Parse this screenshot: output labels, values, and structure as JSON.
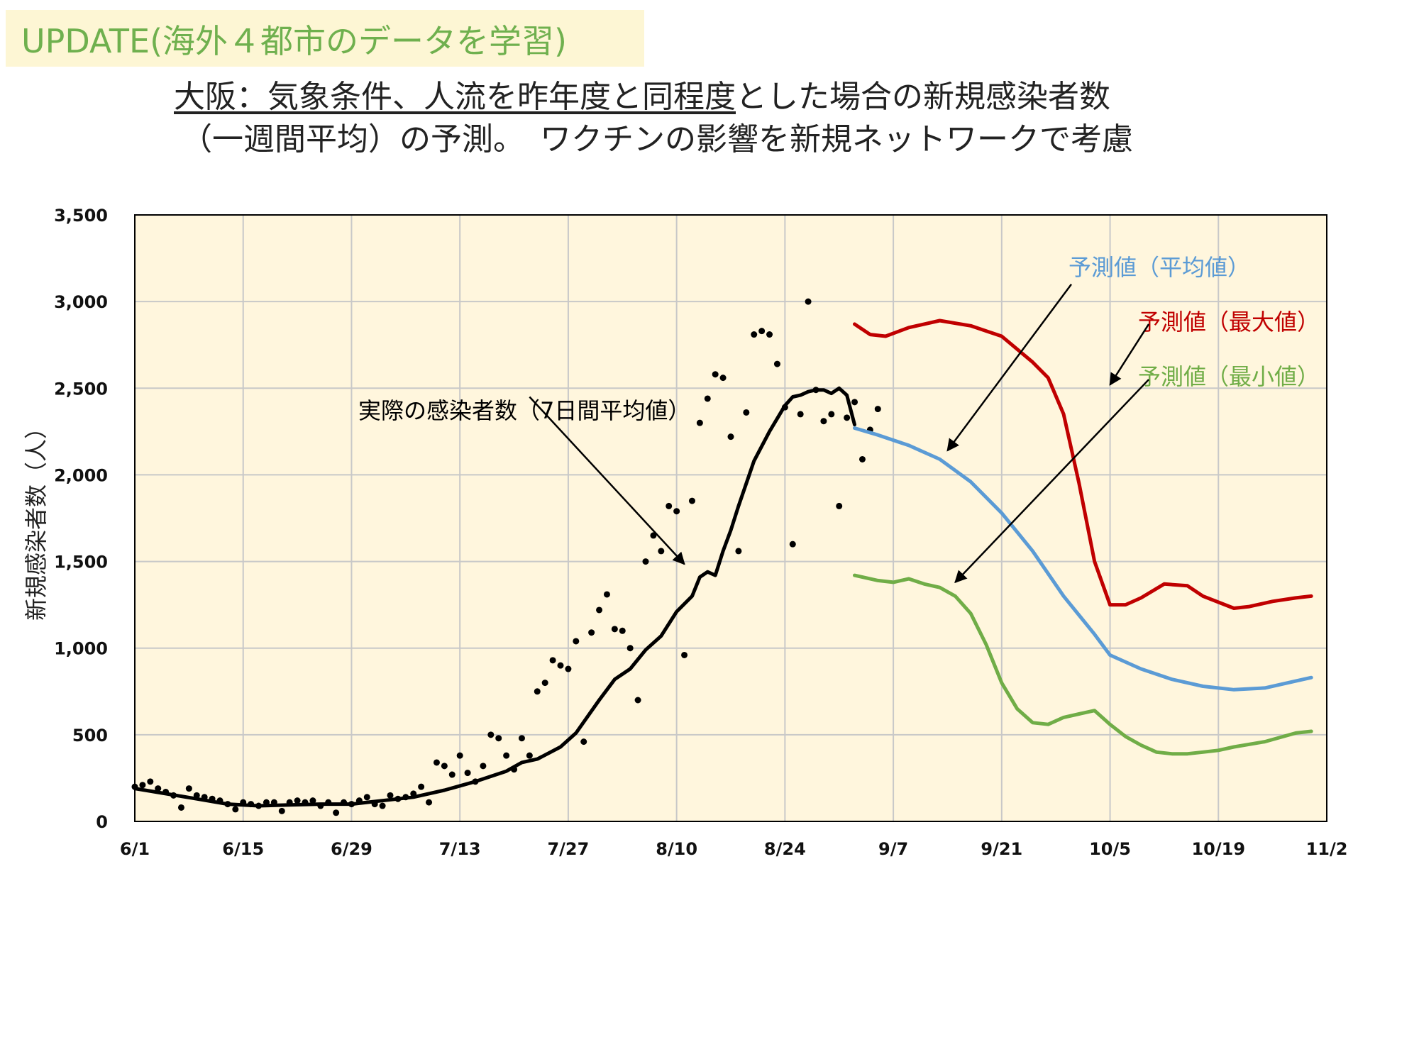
{
  "header": {
    "badge": "UPDATE(海外４都市のデータを学習)",
    "title_line1_underlined": "大阪：気象条件、人流を昨年度と同程度",
    "title_line1_rest": "とした場合の新規感染者数",
    "title_line2": "（一週間平均）の予測。　ワクチンの影響を新規ネットワークで考慮"
  },
  "colors": {
    "plot_bg": "#fff6dd",
    "grid": "#c8c8c8",
    "actual": "#000000",
    "pred_avg": "#5b9bd5",
    "pred_max": "#c00000",
    "pred_min": "#70ad47",
    "badge_text": "#6fb04e"
  },
  "chart_data": {
    "type": "line",
    "title": "",
    "ylabel": "新規感染者数（人）",
    "xlabel": "",
    "ylim": [
      0,
      3500
    ],
    "y_ticks": [
      0,
      500,
      1000,
      1500,
      2000,
      2500,
      3000,
      3500
    ],
    "y_tick_labels": [
      "0",
      "500",
      "1,000",
      "1,500",
      "2,000",
      "2,500",
      "3,000",
      "3,500"
    ],
    "x_ticks": [
      0,
      14,
      28,
      42,
      56,
      70,
      84,
      98,
      112,
      126,
      140,
      154
    ],
    "x_tick_labels": [
      "6/1",
      "6/15",
      "6/29",
      "7/13",
      "7/27",
      "8/10",
      "8/24",
      "9/7",
      "9/21",
      "10/5",
      "10/19",
      "11/2"
    ],
    "x_unit": "days from 6/1",
    "grid": true,
    "annotations": [
      {
        "text": "実際の感染者数（7日間平均値）",
        "color": "#000000",
        "from": [
          51,
          2450
        ],
        "to": [
          71,
          1485
        ]
      },
      {
        "text": "予測値（平均値）",
        "color": "#5b9bd5",
        "from": [
          121,
          3100
        ],
        "to": [
          105,
          2140
        ]
      },
      {
        "text": "予測値（最大値）",
        "color": "#c00000",
        "from": [
          131,
          2870
        ],
        "to": [
          126,
          2520
        ]
      },
      {
        "text": "予測値（最小値）",
        "color": "#70ad47",
        "from": [
          131,
          2550
        ],
        "to": [
          106,
          1380
        ]
      }
    ],
    "series": [
      {
        "name": "実際の感染者数（7日間平均値）",
        "type": "line",
        "key": "actual",
        "x": [
          0,
          4,
          8,
          12,
          16,
          20,
          24,
          28,
          32,
          36,
          40,
          44,
          48,
          50,
          52,
          55,
          57,
          60,
          62,
          64,
          66,
          68,
          70,
          72,
          73,
          74,
          75,
          76,
          77,
          78,
          80,
          82,
          84,
          85,
          86,
          87,
          88,
          89,
          90,
          91,
          92,
          93
        ],
        "y": [
          190,
          160,
          130,
          100,
          90,
          95,
          100,
          100,
          120,
          140,
          180,
          230,
          290,
          340,
          360,
          430,
          510,
          700,
          820,
          880,
          990,
          1070,
          1210,
          1300,
          1410,
          1440,
          1420,
          1560,
          1680,
          1820,
          2080,
          2250,
          2400,
          2450,
          2460,
          2480,
          2490,
          2490,
          2470,
          2500,
          2460,
          2290
        ]
      },
      {
        "name": "実際の感染者数（日次）",
        "type": "scatter",
        "key": "daily",
        "x": [
          0,
          1,
          2,
          3,
          4,
          5,
          6,
          7,
          8,
          9,
          10,
          11,
          12,
          13,
          14,
          15,
          16,
          17,
          18,
          19,
          20,
          21,
          22,
          23,
          24,
          25,
          26,
          27,
          28,
          29,
          30,
          31,
          32,
          33,
          34,
          35,
          36,
          37,
          38,
          39,
          40,
          41,
          42,
          43,
          44,
          45,
          46,
          47,
          48,
          49,
          50,
          51,
          52,
          53,
          54,
          55,
          56,
          57,
          58,
          59,
          60,
          61,
          62,
          63,
          64,
          65,
          66,
          67,
          68,
          69,
          70,
          71,
          72,
          73,
          74,
          75,
          76,
          77,
          78,
          79,
          80,
          81,
          82,
          83,
          84,
          85,
          86,
          87,
          88,
          89,
          90,
          91,
          92,
          93,
          94,
          95,
          96
        ],
        "y": [
          200,
          210,
          230,
          190,
          170,
          150,
          80,
          190,
          150,
          140,
          130,
          120,
          100,
          70,
          110,
          100,
          90,
          110,
          110,
          60,
          110,
          120,
          110,
          120,
          90,
          110,
          50,
          110,
          100,
          120,
          140,
          100,
          90,
          150,
          130,
          140,
          160,
          200,
          110,
          340,
          320,
          270,
          380,
          280,
          230,
          320,
          500,
          480,
          380,
          300,
          480,
          380,
          750,
          800,
          930,
          900,
          880,
          1040,
          460,
          1090,
          1220,
          1310,
          1110,
          1100,
          1000,
          700,
          1500,
          1650,
          1560,
          1820,
          1790,
          960,
          1850,
          2300,
          2440,
          2580,
          2560,
          2220,
          1560,
          2360,
          2810,
          2830,
          2810,
          2640,
          2390,
          1600,
          2350,
          3000,
          2490,
          2310,
          2350,
          1820,
          2330,
          2420,
          2090,
          2260,
          2380
        ]
      },
      {
        "name": "予測値（平均値）",
        "type": "line",
        "key": "pred_avg",
        "x": [
          93,
          96,
          100,
          104,
          108,
          112,
          116,
          120,
          124,
          126,
          130,
          134,
          138,
          142,
          146,
          150,
          152
        ],
        "y": [
          2270,
          2230,
          2170,
          2090,
          1960,
          1780,
          1560,
          1300,
          1080,
          960,
          880,
          820,
          780,
          760,
          770,
          810,
          830
        ]
      },
      {
        "name": "予測値（最大値）",
        "type": "line",
        "key": "pred_max",
        "x": [
          93,
          95,
          97,
          100,
          102,
          104,
          108,
          112,
          116,
          118,
          120,
          122,
          124,
          126,
          128,
          130,
          133,
          136,
          138,
          142,
          144,
          147,
          150,
          152
        ],
        "y": [
          2870,
          2810,
          2800,
          2850,
          2870,
          2890,
          2860,
          2800,
          2650,
          2560,
          2350,
          1950,
          1500,
          1250,
          1250,
          1290,
          1370,
          1360,
          1300,
          1230,
          1240,
          1270,
          1290,
          1300
        ]
      },
      {
        "name": "予測値（最小値）",
        "type": "line",
        "key": "pred_min",
        "x": [
          93,
          96,
          98,
          100,
          102,
          104,
          106,
          108,
          110,
          112,
          114,
          116,
          118,
          120,
          122,
          124,
          126,
          128,
          130,
          132,
          134,
          136,
          138,
          140,
          142,
          146,
          150,
          152
        ],
        "y": [
          1420,
          1390,
          1380,
          1400,
          1370,
          1350,
          1300,
          1200,
          1020,
          800,
          650,
          570,
          560,
          600,
          620,
          640,
          560,
          490,
          440,
          400,
          390,
          390,
          400,
          410,
          430,
          460,
          510,
          520
        ]
      }
    ]
  }
}
